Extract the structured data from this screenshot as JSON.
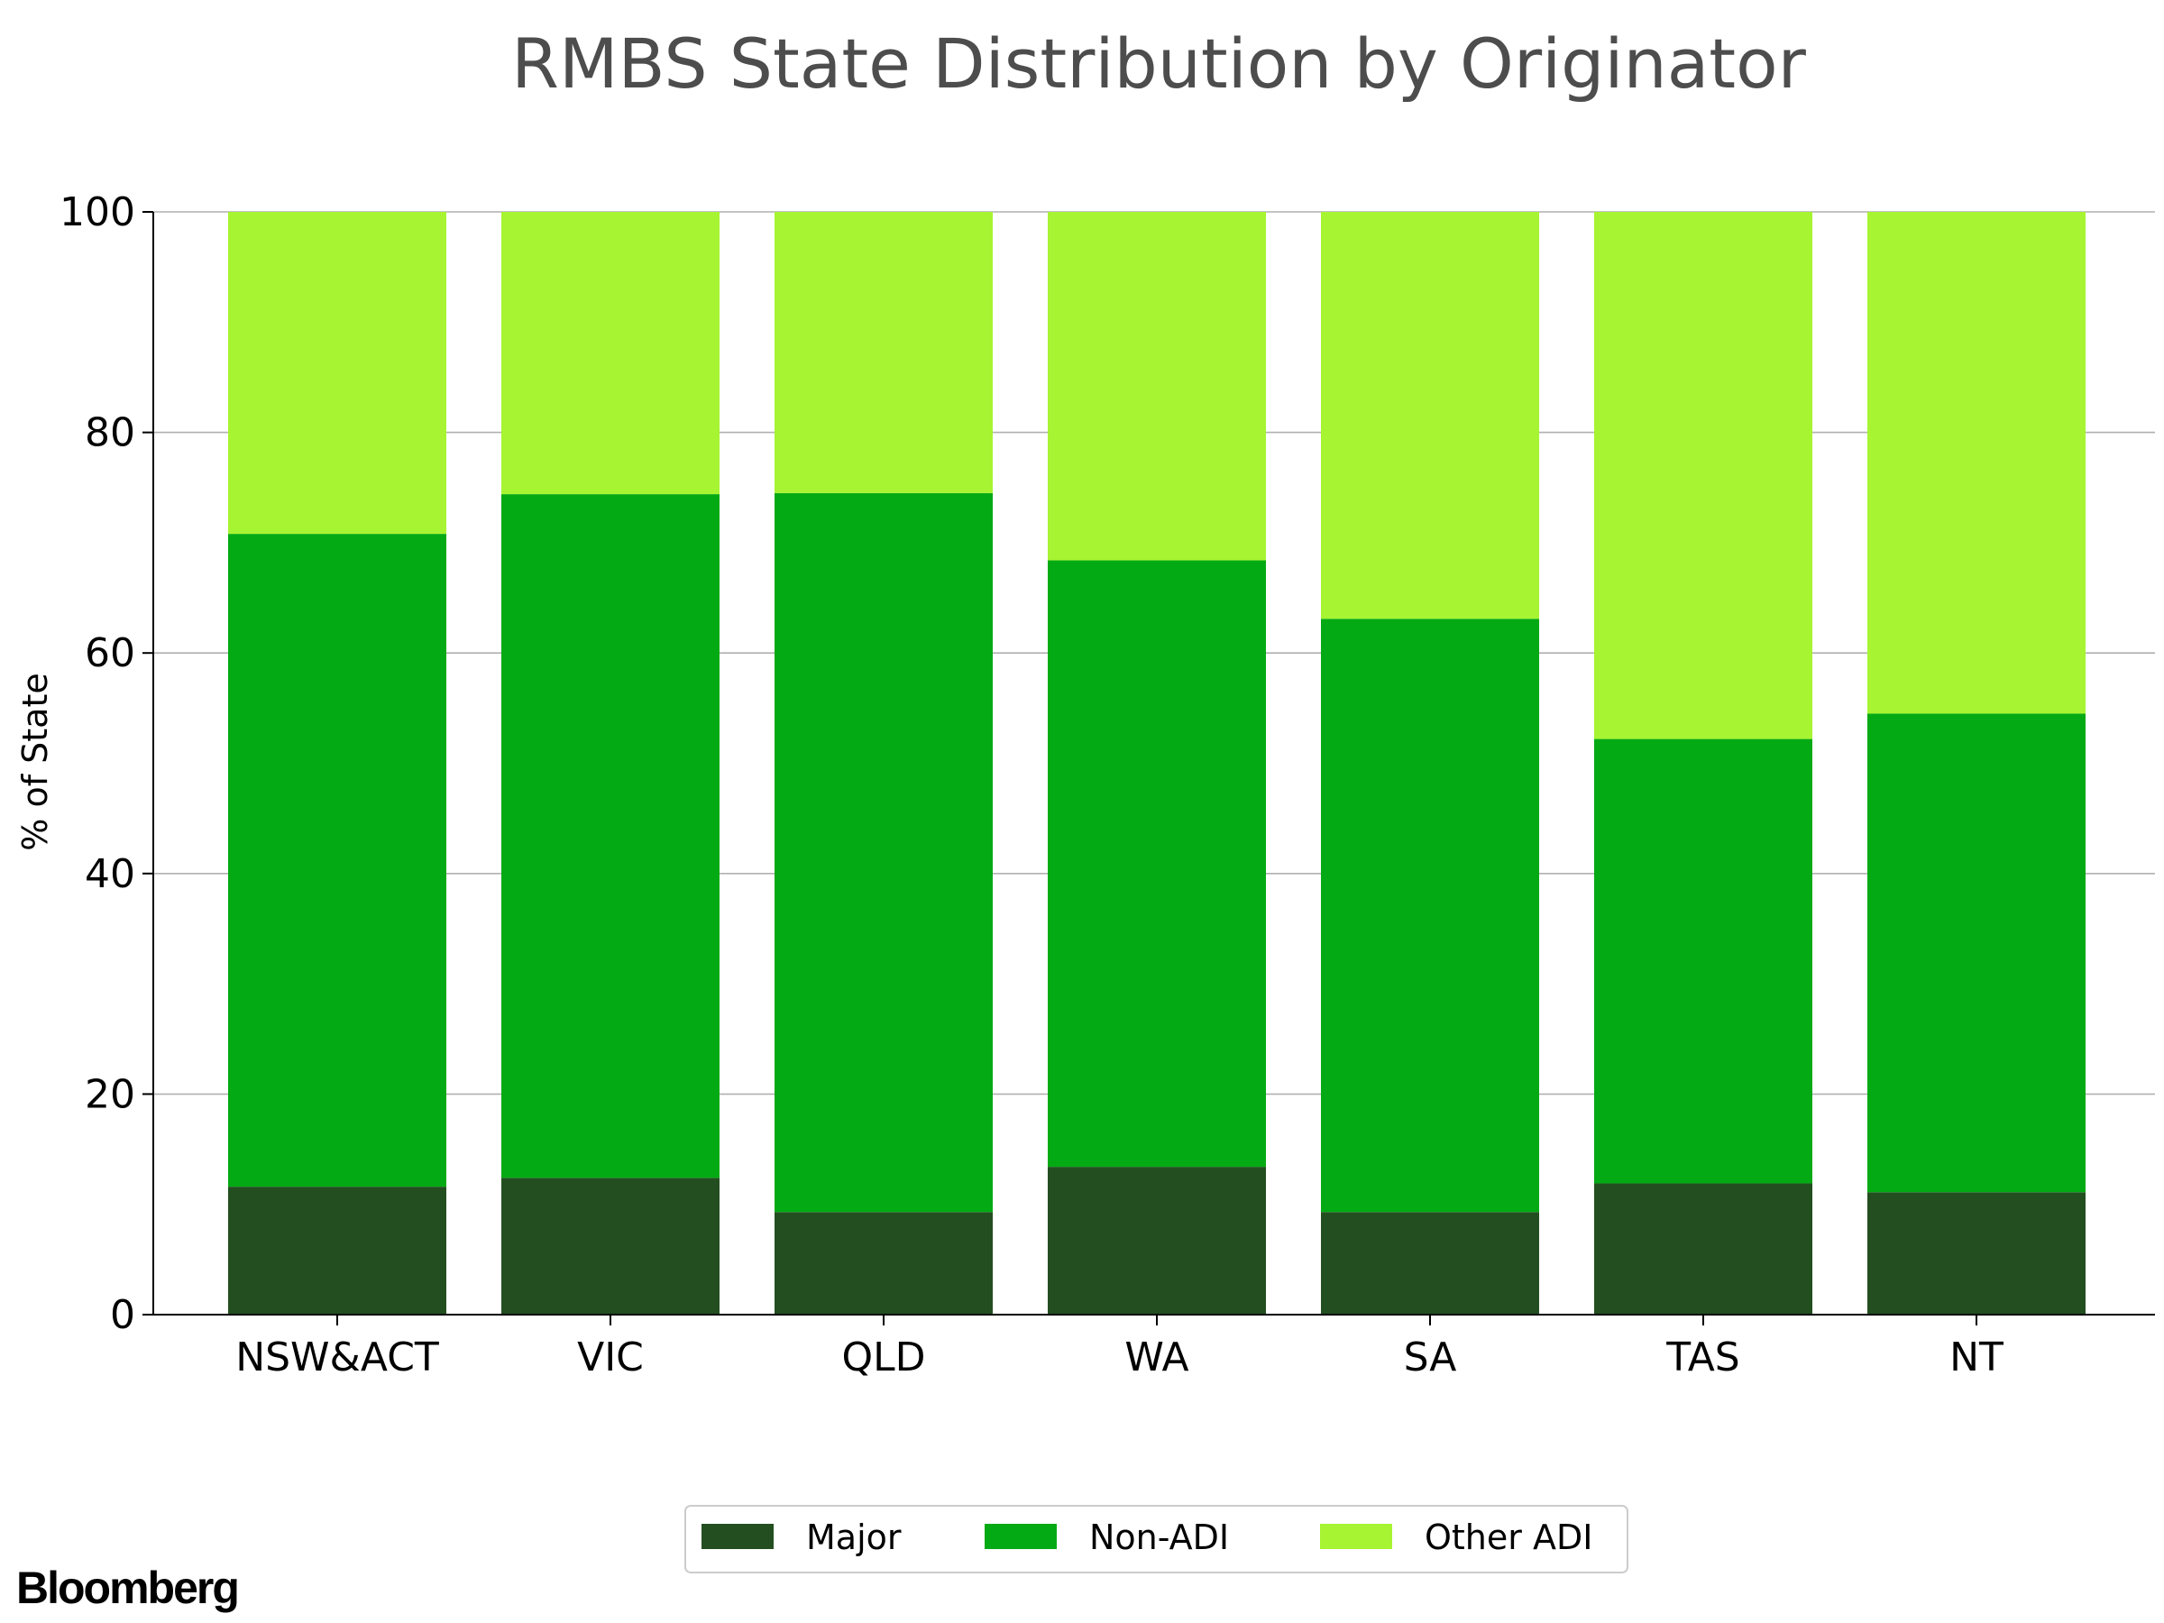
{
  "chart_data": {
    "type": "bar",
    "stacked": true,
    "title": "RMBS State Distribution by Originator",
    "xlabel": "",
    "ylabel": "% of State",
    "ylim": [
      0,
      100
    ],
    "yticks": [
      0,
      20,
      40,
      60,
      80,
      100
    ],
    "grid": "horizontal",
    "legend_position": "bottom-center",
    "categories": [
      "NSW&ACT",
      "VIC",
      "QLD",
      "WA",
      "SA",
      "TAS",
      "NT"
    ],
    "series": [
      {
        "name": "Major",
        "color": "#234f20",
        "values": [
          11.6,
          12.4,
          9.3,
          13.4,
          9.3,
          11.9,
          11.1
        ]
      },
      {
        "name": "Non-ADI",
        "color": "#04aa14",
        "values": [
          59.2,
          62.0,
          65.2,
          55.0,
          53.8,
          40.3,
          43.4
        ]
      },
      {
        "name": "Other ADI",
        "color": "#a7f432",
        "values": [
          29.2,
          25.6,
          25.5,
          31.6,
          36.9,
          47.8,
          45.5
        ]
      }
    ]
  },
  "branding": {
    "logo_text": "Bloomberg"
  }
}
